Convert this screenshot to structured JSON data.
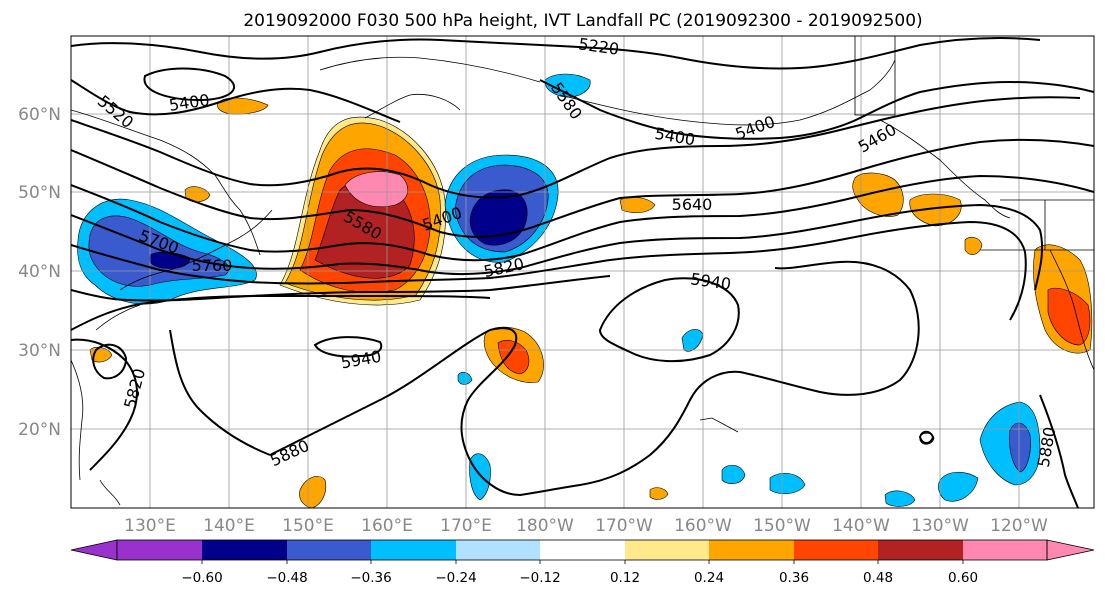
{
  "title": "2019092000 F030 500 hPa height, IVT Landfall PC (2019092300 - 2019092500)",
  "map": {
    "lat_labels": [
      "60°N",
      "50°N",
      "40°N",
      "30°N",
      "20°N"
    ],
    "lon_labels": [
      "130°E",
      "140°E",
      "150°E",
      "160°E",
      "170°E",
      "180°W",
      "170°W",
      "160°W",
      "150°W",
      "140°W",
      "130°W",
      "120°W"
    ],
    "contour_labels": [
      "5220",
      "5580",
      "5400",
      "5520",
      "5400",
      "5400",
      "5460",
      "5580",
      "5400",
      "5640",
      "5700",
      "5760",
      "5820",
      "5940",
      "5940",
      "5820",
      "5880",
      "5880"
    ]
  },
  "colorbar": {
    "ticks": [
      "−0.60",
      "−0.48",
      "−0.36",
      "−0.24",
      "−0.12",
      "0.12",
      "0.24",
      "0.36",
      "0.48",
      "0.60"
    ],
    "colors": [
      "#9932cc",
      "#00008b",
      "#3a5bcd",
      "#00bfff",
      "#b0e2ff",
      "#ffffff",
      "#ffe98a",
      "#ffa500",
      "#ff4500",
      "#b22222",
      "#ff88b0"
    ]
  }
}
